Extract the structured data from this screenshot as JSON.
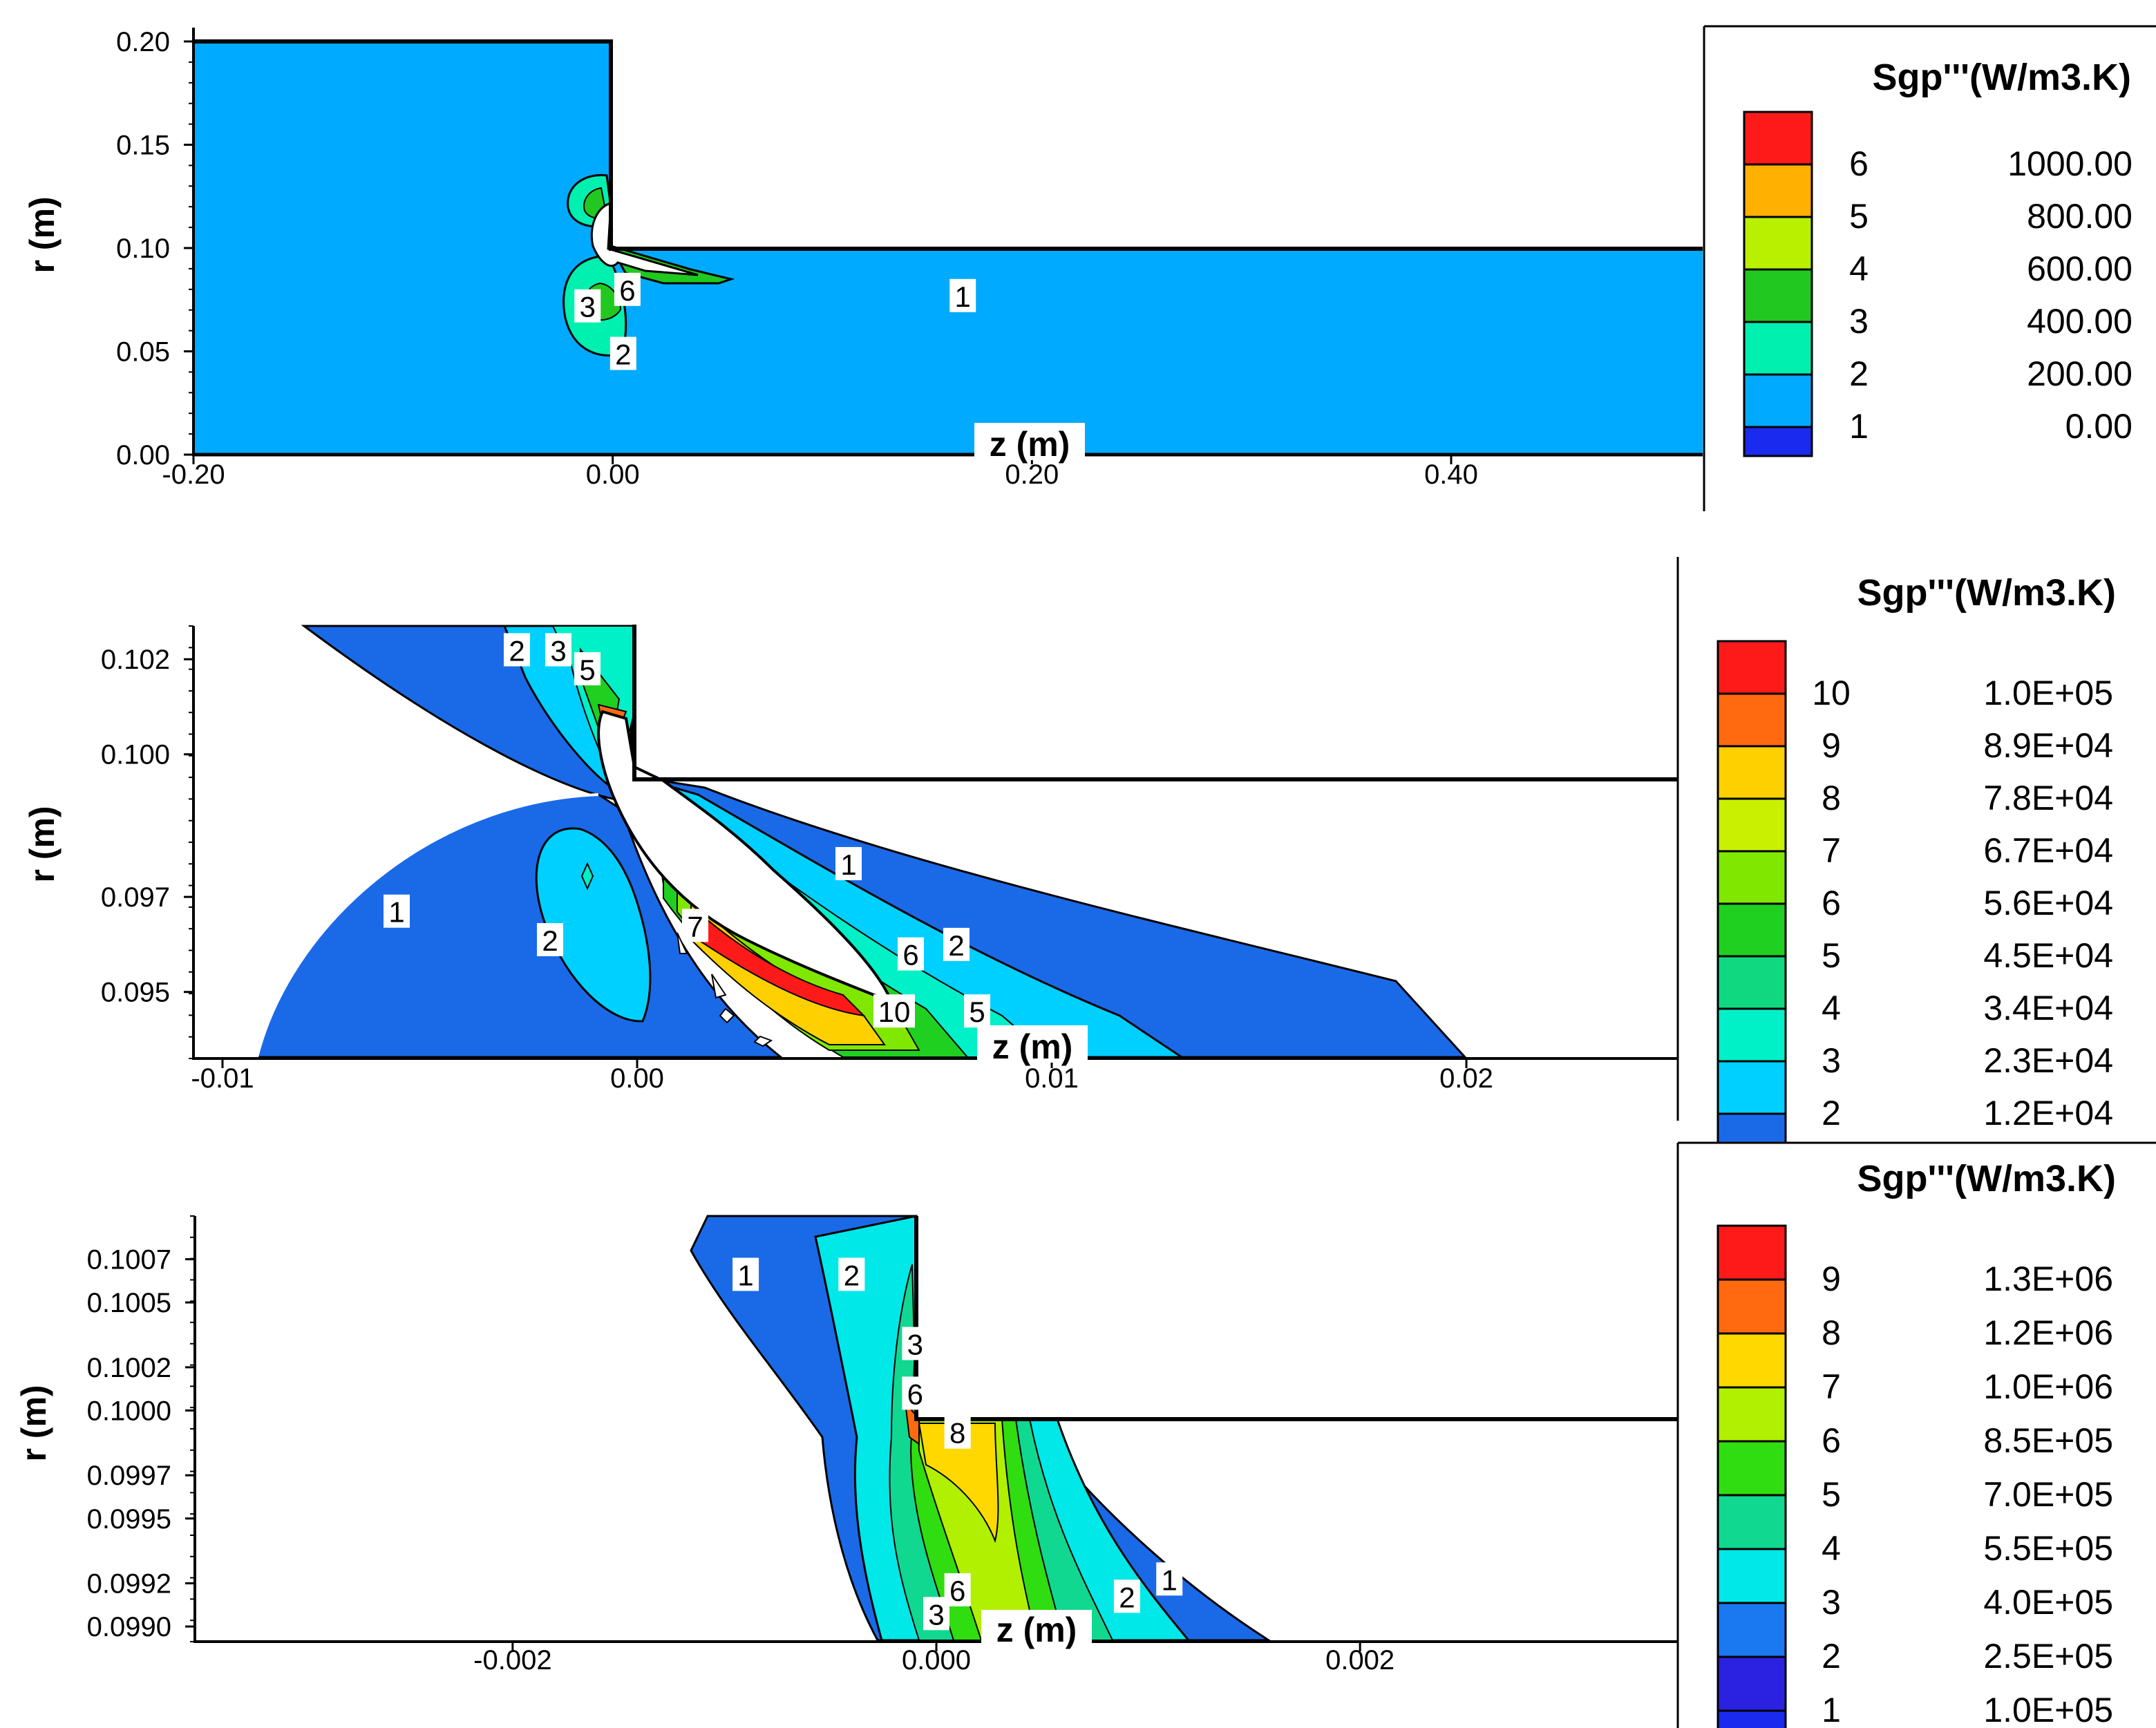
{
  "chart_data": [
    {
      "type": "contour",
      "xlabel": "z (m)",
      "ylabel": "r (m)",
      "xlim": [
        -0.2,
        0.52
      ],
      "ylim": [
        0.0,
        0.2
      ],
      "xticks": [
        "-0.20",
        "0.00",
        "0.20",
        "0.40"
      ],
      "yticks": [
        "0.00",
        "0.05",
        "0.10",
        "0.15",
        "0.20"
      ],
      "legend": {
        "title": "Sgp'''(W/m3.K)",
        "placement": "right",
        "levels": [
          {
            "level": "6",
            "value": "1000.00",
            "color": "#ff1a1a"
          },
          {
            "level": "5",
            "value": "800.00",
            "color": "#ffb000"
          },
          {
            "level": "4",
            "value": "600.00",
            "color": "#b8f000"
          },
          {
            "level": "3",
            "value": "400.00",
            "color": "#20c820"
          },
          {
            "level": "2",
            "value": "200.00",
            "color": "#00f0b0"
          },
          {
            "level": "1",
            "value": "0.00",
            "color": "#00aaff"
          }
        ],
        "bottom_color": "#1a2aee"
      },
      "labels": [
        {
          "text": "1",
          "z": 0.167,
          "r": 0.077
        },
        {
          "text": "6",
          "z": 0.007,
          "r": 0.08
        },
        {
          "text": "3",
          "z": -0.012,
          "r": 0.072
        },
        {
          "text": "2",
          "z": 0.005,
          "r": 0.049
        }
      ]
    },
    {
      "type": "contour",
      "xlabel": "z (m)",
      "ylabel": "r (m)",
      "xlim": [
        -0.0107,
        0.0251
      ],
      "ylim": [
        0.0936,
        0.1027
      ],
      "xticks": [
        "-0.01",
        "0.00",
        "0.01",
        "0.02"
      ],
      "yticks": [
        "0.095",
        "0.097",
        "0.100",
        "0.102"
      ],
      "legend": {
        "title": "Sgp'''(W/m3.K)",
        "placement": "right",
        "levels": [
          {
            "level": "10",
            "value": "1.0E+05",
            "color": "#ff1a1a"
          },
          {
            "level": "9",
            "value": "8.9E+04",
            "color": "#ff6a10"
          },
          {
            "level": "8",
            "value": "7.8E+04",
            "color": "#ffd000"
          },
          {
            "level": "7",
            "value": "6.7E+04",
            "color": "#c8f000"
          },
          {
            "level": "6",
            "value": "5.6E+04",
            "color": "#80e800"
          },
          {
            "level": "5",
            "value": "4.5E+04",
            "color": "#20d020"
          },
          {
            "level": "4",
            "value": "3.4E+04",
            "color": "#10d880"
          },
          {
            "level": "3",
            "value": "2.3E+04",
            "color": "#00f0c8"
          },
          {
            "level": "2",
            "value": "1.2E+04",
            "color": "#00d0ff"
          }
        ],
        "bottom_color": "#1a6ae8"
      },
      "labels": [
        {
          "text": "2",
          "z": -0.0029,
          "r": 0.1022
        },
        {
          "text": "3",
          "z": -0.0019,
          "r": 0.1022
        },
        {
          "text": "5",
          "z": -0.0012,
          "r": 0.1018
        },
        {
          "text": "1",
          "z": 0.0051,
          "r": 0.0977
        },
        {
          "text": "1",
          "z": -0.0058,
          "r": 0.0967
        },
        {
          "text": "2",
          "z": -0.0021,
          "r": 0.0961
        },
        {
          "text": "7",
          "z": 0.0014,
          "r": 0.0964
        },
        {
          "text": "6",
          "z": 0.0066,
          "r": 0.0958
        },
        {
          "text": "2",
          "z": 0.0077,
          "r": 0.096
        },
        {
          "text": "10",
          "z": 0.0062,
          "r": 0.0946
        },
        {
          "text": "5",
          "z": 0.0082,
          "r": 0.0946
        }
      ]
    },
    {
      "type": "contour",
      "xlabel": "z (m)",
      "ylabel": "r (m)",
      "xlim": [
        -0.0035,
        0.0035
      ],
      "ylim": [
        0.09893,
        0.1009
      ],
      "xticks": [
        "-0.002",
        "0.000",
        "0.002"
      ],
      "yticks": [
        "0.0990",
        "0.0992",
        "0.0995",
        "0.0997",
        "0.1000",
        "0.1002",
        "0.1005",
        "0.1007"
      ],
      "legend": {
        "title": "Sgp'''(W/m3.K)",
        "placement": "right",
        "levels": [
          {
            "level": "9",
            "value": "1.3E+06",
            "color": "#ff1a1a"
          },
          {
            "level": "8",
            "value": "1.2E+06",
            "color": "#ff6a10"
          },
          {
            "level": "7",
            "value": "1.0E+06",
            "color": "#ffd800"
          },
          {
            "level": "6",
            "value": "8.5E+05",
            "color": "#b0f000"
          },
          {
            "level": "5",
            "value": "7.0E+05",
            "color": "#30dd10"
          },
          {
            "level": "4",
            "value": "5.5E+05",
            "color": "#10d890"
          },
          {
            "level": "3",
            "value": "4.0E+05",
            "color": "#00e8e8"
          },
          {
            "level": "2",
            "value": "2.5E+05",
            "color": "#1a78f0"
          },
          {
            "level": "1",
            "value": "1.0E+05",
            "color": "#2a22e0"
          }
        ],
        "bottom_color": "#1a2aee"
      },
      "labels": [
        {
          "text": "1",
          "z": -0.0009,
          "r": 0.10063
        },
        {
          "text": "2",
          "z": -0.0004,
          "r": 0.10063
        },
        {
          "text": "3",
          "z": -0.0001,
          "r": 0.10031
        },
        {
          "text": "6",
          "z": -0.0001,
          "r": 0.10008
        },
        {
          "text": "8",
          "z": 0.0001,
          "r": 0.0999
        },
        {
          "text": "6",
          "z": 0.0001,
          "r": 0.09917
        },
        {
          "text": "3",
          "z": 0.0,
          "r": 0.09906
        },
        {
          "text": "2",
          "z": 0.0009,
          "r": 0.09914
        },
        {
          "text": "1",
          "z": 0.0011,
          "r": 0.09922
        }
      ]
    }
  ]
}
